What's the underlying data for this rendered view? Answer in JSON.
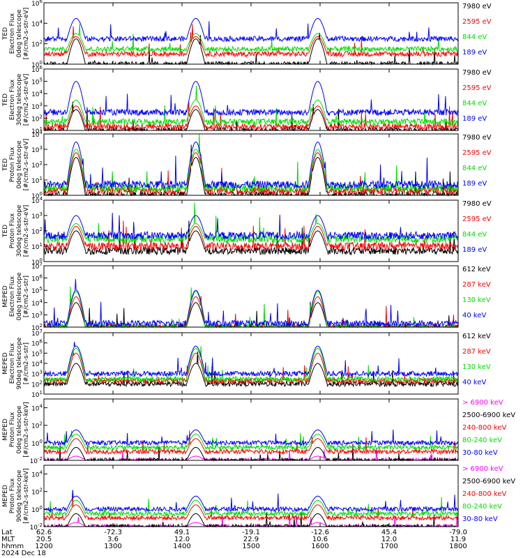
{
  "colors": {
    "black": "#000000",
    "red": "#ff0000",
    "green": "#00dd00",
    "blue": "#0000ff",
    "magenta": "#ff00ff"
  },
  "panels": [
    {
      "ylabel_lines": [
        "TED",
        "Electron Flux",
        "0deg telescope",
        "[#/cm2-s-str-eV]"
      ],
      "ticks": [
        {
          "exp": "6"
        },
        {
          "exp": "4"
        },
        {
          "exp": "2"
        },
        {
          "exp": "0"
        }
      ],
      "legend": [
        {
          "text": "7980 eV",
          "color": "black"
        },
        {
          "text": "2595 eV",
          "color": "red"
        },
        {
          "text": "844 eV",
          "color": "green"
        },
        {
          "text": "189 eV",
          "color": "blue"
        }
      ]
    },
    {
      "ylabel_lines": [
        "TED",
        "Electron Flux",
        "30deg telescope",
        "[#/cm2-s-str-eV]"
      ],
      "ticks": [
        {
          "exp": "6"
        },
        {
          "exp": "5"
        },
        {
          "exp": "4"
        },
        {
          "exp": "3"
        },
        {
          "exp": "2"
        },
        {
          "exp": "1"
        }
      ],
      "legend": [
        {
          "text": "7980 eV",
          "color": "black"
        },
        {
          "text": "2595 eV",
          "color": "red"
        },
        {
          "text": "844 eV",
          "color": "green"
        },
        {
          "text": "189 eV",
          "color": "blue"
        }
      ]
    },
    {
      "ylabel_lines": [
        "TED",
        "Proton Flux",
        "0deg telescope",
        "[#/cm2-s-str-eV]"
      ],
      "ticks": [
        {
          "exp": "4"
        },
        {
          "exp": "3"
        },
        {
          "exp": "2"
        },
        {
          "exp": "1"
        },
        {
          "exp": "0"
        }
      ],
      "legend": [
        {
          "text": "7980 eV",
          "color": "black"
        },
        {
          "text": "2595 eV",
          "color": "red"
        },
        {
          "text": "844 eV",
          "color": "green"
        },
        {
          "text": "189 eV",
          "color": "blue"
        }
      ]
    },
    {
      "ylabel_lines": [
        "TED",
        "Proton Flux",
        "30deg telescope",
        "[#/cm2-s-str-eV]"
      ],
      "ticks": [
        {
          "exp": "4"
        },
        {
          "exp": "3"
        },
        {
          "exp": "2"
        },
        {
          "exp": "1"
        },
        {
          "exp": "0"
        }
      ],
      "legend": [
        {
          "text": "7980 eV",
          "color": "black"
        },
        {
          "text": "2595 eV",
          "color": "red"
        },
        {
          "text": "844 eV",
          "color": "green"
        },
        {
          "text": "189 eV",
          "color": "blue"
        }
      ]
    },
    {
      "ylabel_lines": [
        "MEPED",
        "Electron Flux",
        "0deg telescope",
        "[#/cm2-s-str]"
      ],
      "ticks": [
        {
          "exp": "7"
        },
        {
          "exp": "6"
        },
        {
          "exp": "5"
        },
        {
          "exp": "4"
        },
        {
          "exp": "3"
        },
        {
          "exp": "2"
        }
      ],
      "legend": [
        {
          "text": "612 keV",
          "color": "black"
        },
        {
          "text": "287 keV",
          "color": "red"
        },
        {
          "text": "130 keV",
          "color": "green"
        },
        {
          "text": "40 keV",
          "color": "blue"
        }
      ]
    },
    {
      "ylabel_lines": [
        "MEPED",
        "Electron Flux",
        "90deg telescope",
        "[#/cm2-s-str]"
      ],
      "ticks": [
        {
          "exp": "7"
        },
        {
          "exp": "6"
        },
        {
          "exp": "5"
        },
        {
          "exp": "4"
        },
        {
          "exp": "3"
        },
        {
          "exp": "2"
        },
        {
          "exp": "1"
        }
      ],
      "legend": [
        {
          "text": "612 keV",
          "color": "black"
        },
        {
          "text": "287 keV",
          "color": "red"
        },
        {
          "text": "130 keV",
          "color": "green"
        },
        {
          "text": "40 keV",
          "color": "blue"
        }
      ]
    },
    {
      "ylabel_lines": [
        "MEPED",
        "Proton Flux",
        "0deg telescope",
        "[#/cm2-s-str-keV]"
      ],
      "ticks": [
        {
          "exp": "4"
        },
        {
          "exp": "2"
        },
        {
          "exp": "0"
        },
        {
          "exp": "-2"
        }
      ],
      "legend": [
        {
          "text": "> 6900 keV",
          "color": "magenta"
        },
        {
          "text": "2500-6900 keV",
          "color": "black"
        },
        {
          "text": "240-800 keV",
          "color": "red"
        },
        {
          "text": "80-240 keV",
          "color": "green"
        },
        {
          "text": "30-80 keV",
          "color": "blue"
        }
      ]
    },
    {
      "ylabel_lines": [
        "MEPED",
        "Proton Flux",
        "90deg telescope",
        "[#/cm2-s-str-keV]"
      ],
      "ticks": [
        {
          "exp": "4"
        },
        {
          "exp": "2"
        },
        {
          "exp": "0"
        },
        {
          "exp": "-2"
        }
      ],
      "legend": [
        {
          "text": "> 6900 keV",
          "color": "magenta"
        },
        {
          "text": "2500-6900 keV",
          "color": "black"
        },
        {
          "text": "240-800 keV",
          "color": "red"
        },
        {
          "text": "80-240 keV",
          "color": "green"
        },
        {
          "text": "30-80 keV",
          "color": "blue"
        }
      ]
    }
  ],
  "footer": {
    "row_labels": [
      "Lat",
      "MLT",
      "hhmm",
      "2024 Dec 18"
    ],
    "columns": [
      {
        "lat": "62.6",
        "mlt": "20.5",
        "hhmm": "1200"
      },
      {
        "lat": "-72.3",
        "mlt": "3.6",
        "hhmm": "1300"
      },
      {
        "lat": "49.1",
        "mlt": "12.0",
        "hhmm": "1400"
      },
      {
        "lat": "-19.1",
        "mlt": "22.9",
        "hhmm": "1500"
      },
      {
        "lat": "-12.6",
        "mlt": "10.6",
        "hhmm": "1600"
      },
      {
        "lat": "45.4",
        "mlt": "12.0",
        "hhmm": "1700"
      },
      {
        "lat": "-79.0",
        "mlt": "11.9",
        "hhmm": "1800"
      }
    ]
  },
  "chart_data": {
    "type": "line",
    "title": "",
    "xlabel": "hhmm",
    "x_ticks": [
      "1200",
      "1300",
      "1400",
      "1500",
      "1600",
      "1700",
      "1800"
    ],
    "xlim": [
      "1200",
      "1800"
    ],
    "yscale": "log",
    "date": "2024 Dec 18",
    "grid": false,
    "legend": "right",
    "pass_windows": [
      [
        "1220",
        "1236"
      ],
      [
        "1404",
        "1420"
      ],
      [
        "1550",
        "1606"
      ]
    ],
    "panels": [
      {
        "instrument": "TED",
        "quantity": "Electron Flux",
        "telescope": "0deg",
        "unit": "#/cm2-s-str-eV",
        "ylim": [
          "1e0",
          "1e6"
        ],
        "series": [
          {
            "name": "7980 eV",
            "color": "black",
            "background": "1e0",
            "peak": "3e2"
          },
          {
            "name": "2595 eV",
            "color": "red",
            "background": "1e1",
            "peak": "5e2"
          },
          {
            "name": "844 eV",
            "color": "green",
            "background": "3e1",
            "peak": "1e3"
          },
          {
            "name": "189 eV",
            "color": "blue",
            "background": "3e2",
            "peak": "3e4"
          }
        ]
      },
      {
        "instrument": "TED",
        "quantity": "Electron Flux",
        "telescope": "30deg",
        "unit": "#/cm2-s-str-eV",
        "ylim": [
          "1e1",
          "1e6"
        ],
        "series": [
          {
            "name": "7980 eV",
            "color": "black",
            "background": "1e1",
            "peak": "5e2"
          },
          {
            "name": "2595 eV",
            "color": "red",
            "background": "2e1",
            "peak": "1e3"
          },
          {
            "name": "844 eV",
            "color": "green",
            "background": "5e1",
            "peak": "3e3"
          },
          {
            "name": "189 eV",
            "color": "blue",
            "background": "3e2",
            "peak": "1e5"
          }
        ]
      },
      {
        "instrument": "TED",
        "quantity": "Proton Flux",
        "telescope": "0deg",
        "unit": "#/cm2-s-str-eV",
        "ylim": [
          "1e0",
          "1e4"
        ],
        "series": [
          {
            "name": "7980 eV",
            "color": "black",
            "background": "1e0",
            "peak": "3e2"
          },
          {
            "name": "2595 eV",
            "color": "red",
            "background": "2e0",
            "peak": "6e2"
          },
          {
            "name": "844 eV",
            "color": "green",
            "background": "3e0",
            "peak": "1e3"
          },
          {
            "name": "189 eV",
            "color": "blue",
            "background": "5e0",
            "peak": "3e3"
          }
        ]
      },
      {
        "instrument": "TED",
        "quantity": "Proton Flux",
        "telescope": "30deg",
        "unit": "#/cm2-s-str-eV",
        "ylim": [
          "1e0",
          "1e4"
        ],
        "series": [
          {
            "name": "7980 eV",
            "color": "black",
            "background": "5e0",
            "peak": "1e2"
          },
          {
            "name": "2595 eV",
            "color": "red",
            "background": "1e1",
            "peak": "2e2"
          },
          {
            "name": "844 eV",
            "color": "green",
            "background": "3e1",
            "peak": "3e2"
          },
          {
            "name": "189 eV",
            "color": "blue",
            "background": "5e1",
            "peak": "1e3"
          }
        ]
      },
      {
        "instrument": "MEPED",
        "quantity": "Electron Flux",
        "telescope": "0deg",
        "unit": "#/cm2-s-str",
        "ylim": [
          "1e2",
          "1e7"
        ],
        "series": [
          {
            "name": "612 keV",
            "color": "black",
            "background": "1e2",
            "peak": "1e4"
          },
          {
            "name": "287 keV",
            "color": "red",
            "background": "1e2",
            "peak": "3e4"
          },
          {
            "name": "130 keV",
            "color": "green",
            "background": "1e2",
            "peak": "8e4"
          },
          {
            "name": "40 keV",
            "color": "blue",
            "background": "2e2",
            "peak": "1e5"
          }
        ]
      },
      {
        "instrument": "MEPED",
        "quantity": "Electron Flux",
        "telescope": "90deg",
        "unit": "#/cm2-s-str",
        "ylim": [
          "1e1",
          "1e7"
        ],
        "series": [
          {
            "name": "612 keV",
            "color": "black",
            "background": "1e2",
            "peak": "1e4"
          },
          {
            "name": "287 keV",
            "color": "red",
            "background": "2e2",
            "peak": "1e5"
          },
          {
            "name": "130 keV",
            "color": "green",
            "background": "3e2",
            "peak": "3e5"
          },
          {
            "name": "40 keV",
            "color": "blue",
            "background": "1e3",
            "peak": "5e5"
          }
        ]
      },
      {
        "instrument": "MEPED",
        "quantity": "Proton Flux",
        "telescope": "0deg",
        "unit": "#/cm2-s-str-keV",
        "ylim": [
          "1e-2",
          "1e5"
        ],
        "series": [
          {
            "name": "> 6900 keV",
            "color": "magenta",
            "background": "1e-2",
            "peak": "3e-2"
          },
          {
            "name": "2500-6900 keV",
            "color": "black",
            "background": "1e-2",
            "peak": "3e-1"
          },
          {
            "name": "240-800 keV",
            "color": "red",
            "background": "1e-1",
            "peak": "3e0"
          },
          {
            "name": "80-240 keV",
            "color": "green",
            "background": "3e-1",
            "peak": "1e1"
          },
          {
            "name": "30-80 keV",
            "color": "blue",
            "background": "1e0",
            "peak": "3e1"
          }
        ]
      },
      {
        "instrument": "MEPED",
        "quantity": "Proton Flux",
        "telescope": "90deg",
        "unit": "#/cm2-s-str-keV",
        "ylim": [
          "1e-2",
          "1e5"
        ],
        "series": [
          {
            "name": "> 6900 keV",
            "color": "magenta",
            "background": "1e-2",
            "peak": "3e-2"
          },
          {
            "name": "2500-6900 keV",
            "color": "black",
            "background": "1e-2",
            "peak": "3e-1"
          },
          {
            "name": "240-800 keV",
            "color": "red",
            "background": "1e-1",
            "peak": "3e0"
          },
          {
            "name": "80-240 keV",
            "color": "green",
            "background": "3e-1",
            "peak": "1e1"
          },
          {
            "name": "30-80 keV",
            "color": "blue",
            "background": "1e0",
            "peak": "3e1"
          }
        ]
      }
    ]
  }
}
